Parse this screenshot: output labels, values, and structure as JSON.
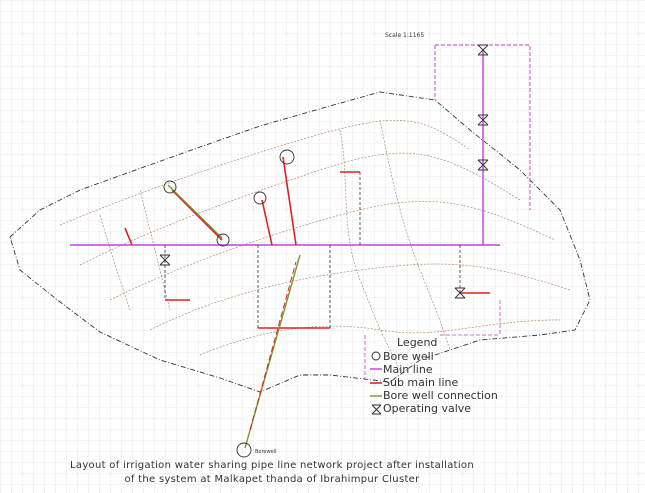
{
  "drawing": {
    "scale": "Scale 1:1165",
    "labels": [
      "Borewell"
    ]
  },
  "legend": {
    "title": "Legend",
    "items": [
      "Bore well",
      "Main line",
      "Sub main line",
      "Bore well connection",
      "Operating valve"
    ]
  },
  "caption": [
    "Layout of irrigation water sharing pipe line network project after installation",
    "of the system at Malkapet thanda of Ibrahimpur Cluster"
  ]
}
